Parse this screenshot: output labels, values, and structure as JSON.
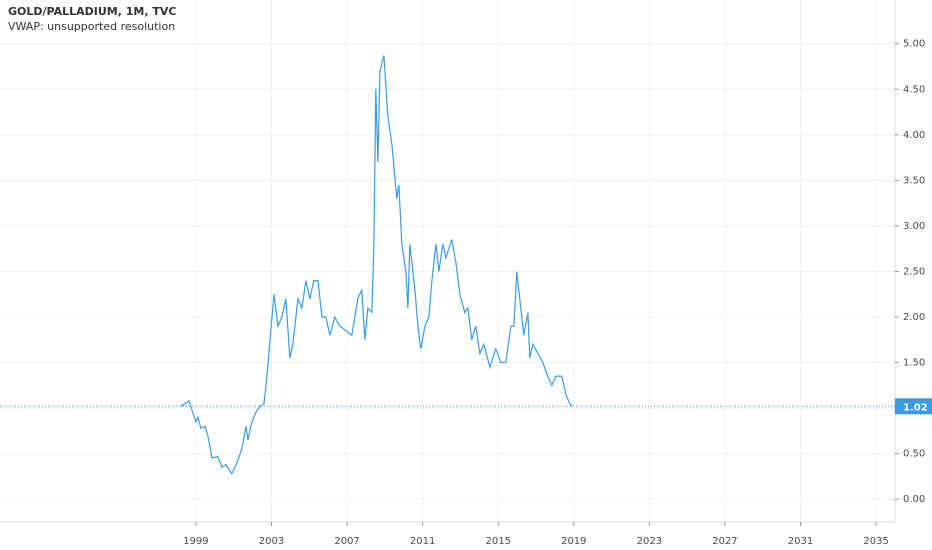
{
  "chart_data": {
    "type": "line",
    "title": "GOLD/PALLADIUM, 1M, TVC",
    "subtitle": "VWAP: unsupported resolution",
    "color": "#3a9be3",
    "grid": true,
    "xlim": [
      1988.63,
      2036.0
    ],
    "ylim": [
      -0.25,
      5.48
    ],
    "xticks": [
      1999,
      2003,
      2007,
      2011,
      2015,
      2019,
      2023,
      2027,
      2031,
      2035
    ],
    "yticks": [
      {
        "value": 0,
        "label": "0.00"
      },
      {
        "value": 0.5,
        "label": "0.50"
      },
      {
        "value": 1,
        "label": "1.00"
      },
      {
        "value": 1.5,
        "label": "1.50"
      },
      {
        "value": 2,
        "label": "2.00"
      },
      {
        "value": 2.5,
        "label": "2.50"
      },
      {
        "value": 3,
        "label": "3.00"
      },
      {
        "value": 3.5,
        "label": "3.50"
      },
      {
        "value": 4,
        "label": "4.00"
      },
      {
        "value": 4.5,
        "label": "4.50"
      },
      {
        "value": 5,
        "label": "5.00"
      }
    ],
    "last_value": 1.02,
    "x": [
      1998.21,
      1998.63,
      1998.84,
      1999.0,
      1999.11,
      1999.26,
      1999.48,
      1999.63,
      1999.85,
      2000.16,
      2000.38,
      2000.59,
      2000.9,
      2001.17,
      2001.43,
      2001.65,
      2001.75,
      2001.96,
      2002.17,
      2002.39,
      2002.6,
      2002.76,
      2002.86,
      2003.13,
      2003.34,
      2003.55,
      2003.76,
      2003.97,
      2004.13,
      2004.4,
      2004.61,
      2004.82,
      2005.03,
      2005.24,
      2005.46,
      2005.67,
      2005.88,
      2006.09,
      2006.35,
      2006.62,
      2006.94,
      2007.25,
      2007.57,
      2007.78,
      2007.94,
      2008.1,
      2008.31,
      2008.42,
      2008.52,
      2008.63,
      2008.74,
      2008.95,
      2009.16,
      2009.37,
      2009.63,
      2009.74,
      2009.9,
      2010.11,
      2010.22,
      2010.32,
      2010.59,
      2010.75,
      2010.9,
      2011.12,
      2011.33,
      2011.49,
      2011.7,
      2011.86,
      2012.07,
      2012.23,
      2012.54,
      2012.76,
      2012.97,
      2013.23,
      2013.39,
      2013.6,
      2013.81,
      2014.03,
      2014.24,
      2014.56,
      2014.87,
      2015.14,
      2015.4,
      2015.67,
      2015.83,
      2015.98,
      2016.14,
      2016.35,
      2016.57,
      2016.67,
      2016.83,
      2017.1,
      2017.36,
      2017.62,
      2017.84,
      2018.05,
      2018.37,
      2018.58,
      2018.79,
      2018.89
    ],
    "values": [
      1.02,
      1.08,
      0.95,
      0.85,
      0.9,
      0.78,
      0.8,
      0.7,
      0.45,
      0.47,
      0.35,
      0.38,
      0.28,
      0.4,
      0.55,
      0.8,
      0.65,
      0.85,
      0.95,
      1.02,
      1.05,
      1.35,
      1.6,
      2.25,
      1.9,
      2.0,
      2.2,
      1.55,
      1.7,
      2.2,
      2.1,
      2.4,
      2.2,
      2.4,
      2.4,
      2.0,
      2.0,
      1.8,
      2.0,
      1.9,
      1.85,
      1.8,
      2.2,
      2.3,
      1.75,
      2.1,
      2.05,
      2.8,
      4.5,
      3.7,
      4.7,
      4.87,
      4.2,
      3.9,
      3.3,
      3.45,
      2.8,
      2.5,
      2.1,
      2.8,
      2.3,
      1.9,
      1.65,
      1.9,
      2.0,
      2.4,
      2.8,
      2.5,
      2.8,
      2.65,
      2.85,
      2.6,
      2.25,
      2.05,
      2.1,
      1.75,
      1.9,
      1.6,
      1.7,
      1.45,
      1.65,
      1.5,
      1.5,
      1.9,
      1.9,
      2.5,
      2.2,
      1.8,
      2.05,
      1.55,
      1.7,
      1.6,
      1.5,
      1.35,
      1.25,
      1.35,
      1.35,
      1.15,
      1.05,
      1.02
    ]
  }
}
